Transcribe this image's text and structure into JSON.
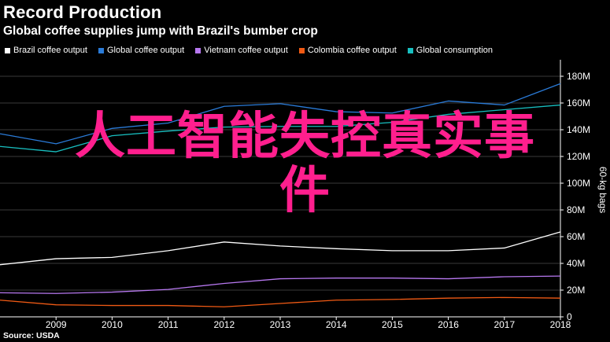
{
  "chart_data": {
    "type": "line",
    "title": "Record Production",
    "subtitle": "Global coffee supplies jump with Brazil's bumber crop",
    "source": "Source: USDA",
    "ylabel": "60-kg bags",
    "ylim": [
      0,
      190
    ],
    "y_axis_side": "right",
    "xlim": [
      2008,
      2018
    ],
    "x": [
      2008,
      2009,
      2010,
      2011,
      2012,
      2013,
      2014,
      2015,
      2016,
      2017,
      2018
    ],
    "x_tick_labels": [
      "2009",
      "2010",
      "2011",
      "2012",
      "2013",
      "2014",
      "2015",
      "2016",
      "2017",
      "2018"
    ],
    "y_ticks": [
      0,
      20,
      40,
      60,
      80,
      100,
      120,
      140,
      160,
      180
    ],
    "y_tick_labels": [
      "0",
      "20M",
      "40M",
      "60M",
      "80M",
      "100M",
      "120M",
      "140M",
      "160M",
      "180M"
    ],
    "grid": true,
    "legend_position": "top-left",
    "series": [
      {
        "name": "Brazil coffee output",
        "color": "#ffffff",
        "values": [
          39,
          43.5,
          44.5,
          49.5,
          56,
          53,
          51,
          49.5,
          49.5,
          51.5,
          63.5
        ]
      },
      {
        "name": "Global coffee output",
        "color": "#2a7bd8",
        "values": [
          137,
          129.5,
          141,
          145,
          157.5,
          159.5,
          153.5,
          152.5,
          161.5,
          158.5,
          174.5
        ]
      },
      {
        "name": "Vietnam coffee output",
        "color": "#b778f0",
        "values": [
          18,
          17.5,
          18.5,
          20.5,
          25,
          28.5,
          29,
          29,
          28.5,
          30,
          30.5
        ]
      },
      {
        "name": "Colombia coffee output",
        "color": "#f05a14",
        "values": [
          12.5,
          9,
          8.5,
          8.5,
          7.5,
          10,
          12.5,
          13,
          14,
          14.5,
          14
        ]
      },
      {
        "name": "Global consumption",
        "color": "#18bfc0",
        "values": [
          127.5,
          123.5,
          135.5,
          139,
          142,
          142.5,
          142.5,
          145.5,
          151.5,
          155,
          158.5
        ]
      }
    ]
  },
  "watermark": {
    "line1": "人工智能失控真实事",
    "line2": "件"
  }
}
